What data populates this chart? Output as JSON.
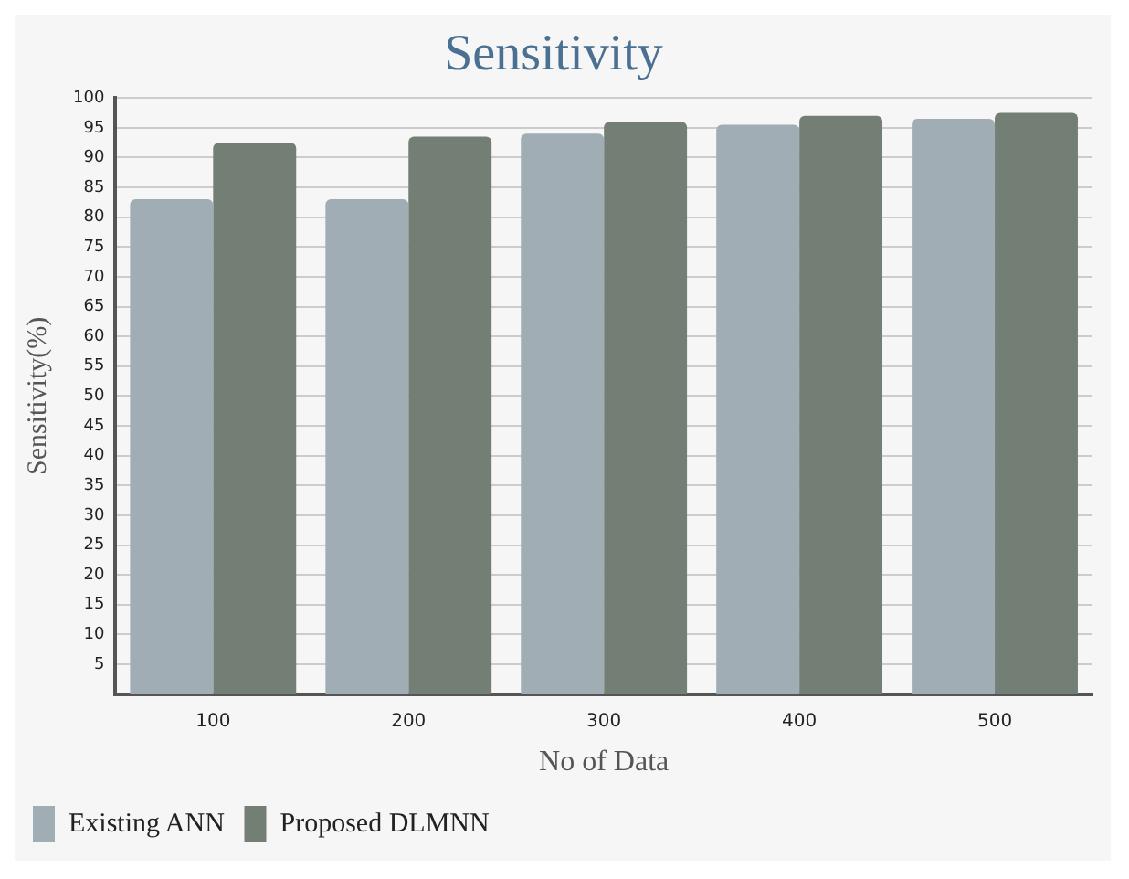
{
  "chart_data": {
    "type": "bar",
    "title": "Sensitivity",
    "xlabel": "No of Data",
    "ylabel": "Sensitivity(%)",
    "categories": [
      "100",
      "200",
      "300",
      "400",
      "500"
    ],
    "series": [
      {
        "name": "Existing ANN",
        "color": "#a1adb5",
        "values": [
          83,
          83,
          94,
          95.5,
          96.5
        ]
      },
      {
        "name": "Proposed DLMNN",
        "color": "#737f74",
        "values": [
          92.5,
          93.5,
          96,
          97,
          97.5
        ]
      }
    ],
    "ylim": [
      0,
      100
    ],
    "yticks": [
      5,
      10,
      15,
      20,
      25,
      30,
      35,
      40,
      45,
      50,
      55,
      60,
      65,
      70,
      75,
      80,
      85,
      90,
      95,
      100
    ],
    "grid": "y",
    "legend": "bottom left"
  }
}
